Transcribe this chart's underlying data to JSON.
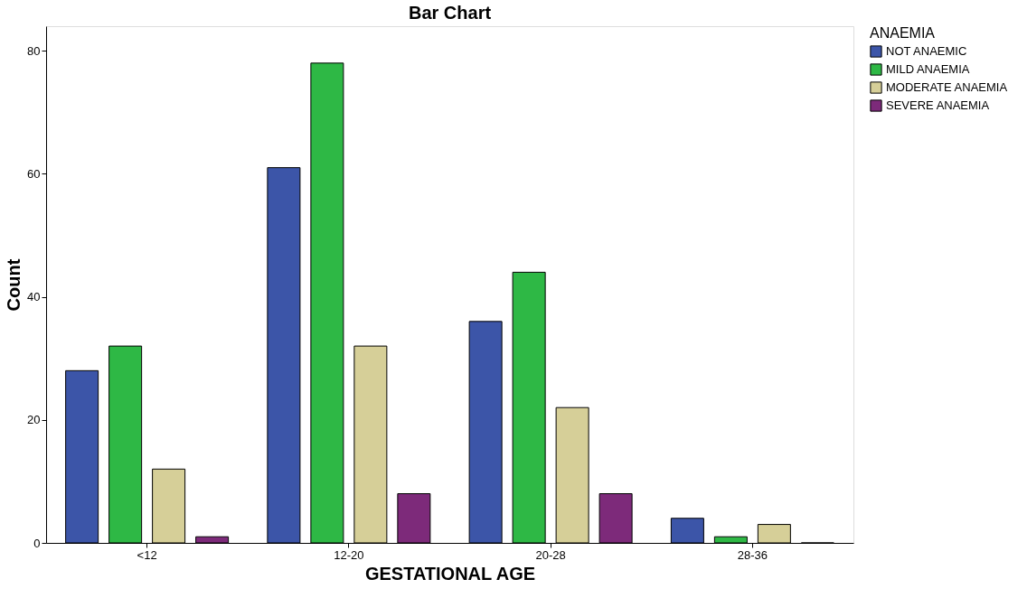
{
  "chart_data": {
    "type": "bar",
    "title": "Bar Chart",
    "xlabel": "GESTATIONAL AGE",
    "ylabel": "Count",
    "legend_title": "ANAEMIA",
    "categories": [
      "<12",
      "12-20",
      "20-28",
      "28-36"
    ],
    "series": [
      {
        "name": "NOT ANAEMIC",
        "color": "#3c55a8",
        "values": [
          28,
          61,
          36,
          4
        ]
      },
      {
        "name": "MILD ANAEMIA",
        "color": "#2eb845",
        "values": [
          32,
          78,
          44,
          1
        ]
      },
      {
        "name": "MODERATE ANAEMIA",
        "color": "#d6cf98",
        "values": [
          12,
          32,
          22,
          3
        ]
      },
      {
        "name": "SEVERE ANAEMIA",
        "color": "#7d2a7a",
        "values": [
          1,
          8,
          8,
          0
        ]
      }
    ],
    "ylim": [
      0,
      84
    ],
    "yticks": [
      0,
      20,
      40,
      60,
      80
    ],
    "grid": false,
    "legend": "right"
  }
}
